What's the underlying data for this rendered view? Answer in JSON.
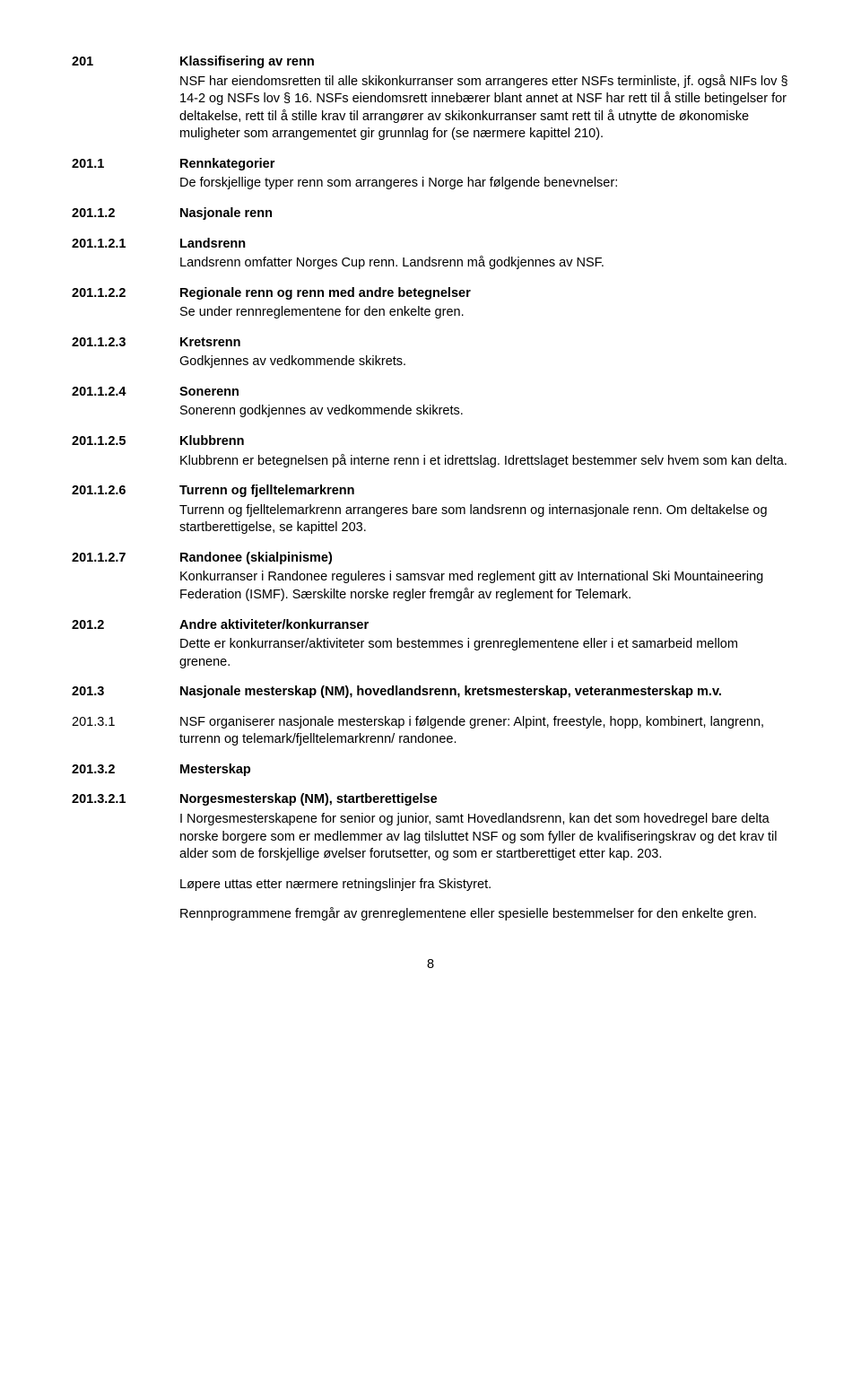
{
  "sections": {
    "s201": {
      "num": "201",
      "title": "Klassifisering av renn",
      "body": "NSF har eiendomsretten til alle skikonkurranser som arrangeres etter NSFs terminliste, jf. også NIFs lov § 14-2 og NSFs lov § 16. NSFs eiendomsrett innebærer blant annet at NSF har rett til å stille betingelser for deltakelse, rett til å stille krav til arrangører av skikonkurranser samt rett til å utnytte de økonomiske muligheter som arrangementet gir grunnlag for (se nærmere kapittel 210)."
    },
    "s201_1": {
      "num": "201.1",
      "title": "Rennkategorier",
      "body": "De forskjellige typer renn som arrangeres i Norge har følgende benevnelser:"
    },
    "s201_1_2": {
      "num": "201.1.2",
      "title": "Nasjonale renn"
    },
    "s201_1_2_1": {
      "num": "201.1.2.1",
      "title": "Landsrenn",
      "body": "Landsrenn omfatter Norges Cup renn. Landsrenn må godkjennes av NSF."
    },
    "s201_1_2_2": {
      "num": "201.1.2.2",
      "title": "Regionale renn og renn med andre betegnelser",
      "body": "Se under rennreglementene for den enkelte gren."
    },
    "s201_1_2_3": {
      "num": "201.1.2.3",
      "title": "Kretsrenn",
      "body": "Godkjennes av vedkommende skikrets."
    },
    "s201_1_2_4": {
      "num": "201.1.2.4",
      "title": "Sonerenn",
      "body": "Sonerenn godkjennes av vedkommende skikrets."
    },
    "s201_1_2_5": {
      "num": "201.1.2.5",
      "title": "Klubbrenn",
      "body": "Klubbrenn er betegnelsen på interne renn i et idrettslag. Idrettslaget bestemmer selv hvem som kan delta."
    },
    "s201_1_2_6": {
      "num": "201.1.2.6",
      "title": "Turrenn og fjelltelemarkrenn",
      "body": "Turrenn og fjelltelemarkrenn arrangeres bare som landsrenn og internasjonale renn. Om deltakelse og startberettigelse, se kapittel 203."
    },
    "s201_1_2_7": {
      "num": "201.1.2.7",
      "title": "Randonee (skialpinisme)",
      "body": "Konkurranser i Randonee reguleres i samsvar med reglement gitt av International Ski Mountaineering Federation (ISMF). Særskilte norske regler fremgår av reglement for Telemark."
    },
    "s201_2": {
      "num": "201.2",
      "title": "Andre aktiviteter/konkurranser",
      "body": "Dette er konkurranser/aktiviteter som bestemmes i grenreglementene eller i et samarbeid mellom grenene."
    },
    "s201_3": {
      "num": "201.3",
      "title": "Nasjonale mesterskap (NM), hovedlandsrenn, kretsmesterskap, veteranmesterskap m.v."
    },
    "s201_3_1": {
      "num": "201.3.1",
      "body": "NSF organiserer nasjonale mesterskap i følgende grener: Alpint, freestyle, hopp, kombinert, langrenn, turrenn og telemark/fjelltelemarkrenn/ randonee."
    },
    "s201_3_2": {
      "num": "201.3.2",
      "title": "Mesterskap"
    },
    "s201_3_2_1": {
      "num": "201.3.2.1",
      "title": "Norgesmesterskap (NM), startberettigelse",
      "body": "I Norgesmesterskapene for senior og junior, samt Hovedlandsrenn, kan det som hovedregel bare delta norske borgere som er medlemmer av lag tilsluttet NSF og som fyller de kvalifiseringskrav og det krav til alder som de forskjellige øvelser forutsetter, og som er startberettiget etter kap. 203.",
      "extra1": "Løpere uttas etter nærmere retningslinjer fra Skistyret.",
      "extra2": "Rennprogrammene fremgår av grenreglementene eller spesielle bestemmelser for den enkelte gren."
    }
  },
  "pageNumber": "8"
}
